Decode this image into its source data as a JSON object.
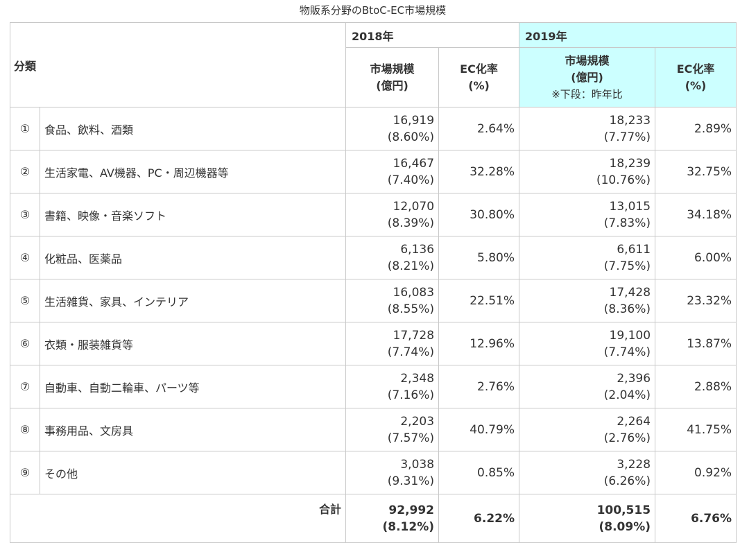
{
  "caption": "物販系分野のBtoC-EC市場規模",
  "headers": {
    "category": "分類",
    "year1": "2018年",
    "year2": "2019年",
    "market_size_line1": "市場規模",
    "market_size_line2": "(億円)",
    "market_size_note": "※下段：昨年比",
    "ec_rate_line1": "EC化率",
    "ec_rate_line2": "(%)"
  },
  "colors": {
    "highlight": "#ccffff",
    "border": "#c8c8c8",
    "text": "#333333"
  },
  "rows": [
    {
      "num": "①",
      "name": "食品、飲料、酒類",
      "y2018_size": "16,919",
      "y2018_yoy": "(8.60%)",
      "y2018_rate": "2.64%",
      "y2019_size": "18,233",
      "y2019_yoy": "(7.77%)",
      "y2019_rate": "2.89%"
    },
    {
      "num": "②",
      "name": "生活家電、AV機器、PC・周辺機器等",
      "y2018_size": "16,467",
      "y2018_yoy": "(7.40%)",
      "y2018_rate": "32.28%",
      "y2019_size": "18,239",
      "y2019_yoy": "(10.76%)",
      "y2019_rate": "32.75%"
    },
    {
      "num": "③",
      "name": "書籍、映像・音楽ソフト",
      "y2018_size": "12,070",
      "y2018_yoy": "(8.39%)",
      "y2018_rate": "30.80%",
      "y2019_size": "13,015",
      "y2019_yoy": "(7.83%)",
      "y2019_rate": "34.18%"
    },
    {
      "num": "④",
      "name": "化粧品、医薬品",
      "y2018_size": "6,136",
      "y2018_yoy": "(8.21%)",
      "y2018_rate": "5.80%",
      "y2019_size": "6,611",
      "y2019_yoy": "(7.75%)",
      "y2019_rate": "6.00%"
    },
    {
      "num": "⑤",
      "name": "生活雑貨、家具、インテリア",
      "y2018_size": "16,083",
      "y2018_yoy": "(8.55%)",
      "y2018_rate": "22.51%",
      "y2019_size": "17,428",
      "y2019_yoy": "(8.36%)",
      "y2019_rate": "23.32%"
    },
    {
      "num": "⑥",
      "name": "衣類・服装雑貨等",
      "y2018_size": "17,728",
      "y2018_yoy": "(7.74%)",
      "y2018_rate": "12.96%",
      "y2019_size": "19,100",
      "y2019_yoy": "(7.74%)",
      "y2019_rate": "13.87%"
    },
    {
      "num": "⑦",
      "name": "自動車、自動二輪車、パーツ等",
      "y2018_size": "2,348",
      "y2018_yoy": "(7.16%)",
      "y2018_rate": "2.76%",
      "y2019_size": "2,396",
      "y2019_yoy": "(2.04%)",
      "y2019_rate": "2.88%"
    },
    {
      "num": "⑧",
      "name": "事務用品、文房具",
      "y2018_size": "2,203",
      "y2018_yoy": "(7.57%)",
      "y2018_rate": "40.79%",
      "y2019_size": "2,264",
      "y2019_yoy": "(2.76%)",
      "y2019_rate": "41.75%"
    },
    {
      "num": "⑨",
      "name": "その他",
      "y2018_size": "3,038",
      "y2018_yoy": "(9.31%)",
      "y2018_rate": "0.85%",
      "y2019_size": "3,228",
      "y2019_yoy": "(6.26%)",
      "y2019_rate": "0.92%"
    }
  ],
  "total": {
    "label": "合計",
    "y2018_size": "92,992",
    "y2018_yoy": "(8.12%)",
    "y2018_rate": "6.22%",
    "y2019_size": "100,515",
    "y2019_yoy": "(8.09%)",
    "y2019_rate": "6.76%"
  }
}
